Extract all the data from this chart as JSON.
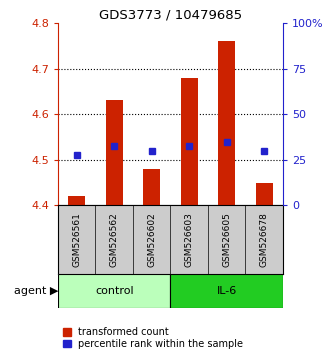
{
  "title": "GDS3773 / 10479685",
  "samples": [
    "GSM526561",
    "GSM526562",
    "GSM526602",
    "GSM526603",
    "GSM526605",
    "GSM526678"
  ],
  "bar_bottom": [
    4.4,
    4.4,
    4.4,
    4.4,
    4.4,
    4.4
  ],
  "bar_top": [
    4.42,
    4.63,
    4.48,
    4.68,
    4.76,
    4.45
  ],
  "blue_y": [
    4.51,
    4.53,
    4.52,
    4.53,
    4.54,
    4.52
  ],
  "ylim_left": [
    4.4,
    4.8
  ],
  "ylim_right": [
    0,
    100
  ],
  "yticks_left": [
    4.4,
    4.5,
    4.6,
    4.7,
    4.8
  ],
  "yticks_right": [
    0,
    25,
    50,
    75,
    100
  ],
  "ytick_right_labels": [
    "0",
    "25",
    "50",
    "75",
    "100%"
  ],
  "bar_color": "#cc2200",
  "blue_color": "#2222cc",
  "groups": [
    {
      "label": "control",
      "indices": [
        0,
        1,
        2
      ],
      "color": "#bbffbb"
    },
    {
      "label": "IL-6",
      "indices": [
        3,
        4,
        5
      ],
      "color": "#22cc22"
    }
  ],
  "agent_label": "agent",
  "legend_red": "transformed count",
  "legend_blue": "percentile rank within the sample",
  "background_color": "#ffffff"
}
